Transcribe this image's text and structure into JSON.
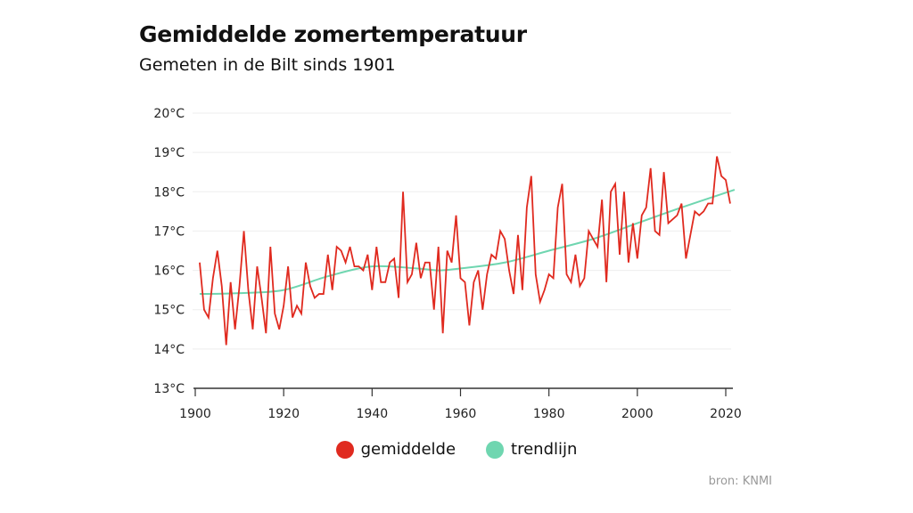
{
  "chart_data": {
    "type": "line",
    "title": "Gemiddelde zomertemperatuur",
    "subtitle": "Gemeten in de Bilt sinds 1901",
    "source": "bron: KNMI",
    "xlim": [
      1900,
      2022
    ],
    "ylim": [
      13,
      20
    ],
    "x_ticks": [
      "1900",
      "1920",
      "1940",
      "1960",
      "1980",
      "2000",
      "2020"
    ],
    "y_ticks": [
      "13°C",
      "14°C",
      "15°C",
      "16°C",
      "17°C",
      "18°C",
      "19°C",
      "20°C"
    ],
    "grid": "horizontal",
    "legend_placement": "bottom",
    "colors": {
      "gemiddelde": "#e02a1f",
      "trendlijn": "#6fd6b0"
    },
    "series": [
      {
        "name": "gemiddelde",
        "x_start": 1901,
        "values": [
          16.2,
          15.0,
          14.8,
          15.8,
          16.5,
          15.6,
          14.1,
          15.7,
          14.5,
          15.6,
          17.0,
          15.5,
          14.5,
          16.1,
          15.3,
          14.4,
          16.6,
          14.9,
          14.5,
          15.1,
          16.1,
          14.8,
          15.1,
          14.9,
          16.2,
          15.6,
          15.3,
          15.4,
          15.4,
          16.4,
          15.5,
          16.6,
          16.5,
          16.2,
          16.6,
          16.1,
          16.1,
          16.0,
          16.4,
          15.5,
          16.6,
          15.7,
          15.7,
          16.2,
          16.3,
          15.3,
          18.0,
          15.7,
          15.9,
          16.7,
          15.8,
          16.2,
          16.2,
          15.0,
          16.6,
          14.4,
          16.5,
          16.2,
          17.4,
          15.8,
          15.7,
          14.6,
          15.7,
          16.0,
          15.0,
          15.9,
          16.4,
          16.3,
          17.0,
          16.8,
          16.0,
          15.4,
          16.9,
          15.5,
          17.6,
          18.4,
          15.9,
          15.2,
          15.5,
          15.9,
          15.8,
          17.6,
          18.2,
          15.9,
          15.7,
          16.4,
          15.6,
          15.8,
          17.0,
          16.8,
          16.6,
          17.8,
          15.7,
          18.0,
          18.2,
          16.4,
          18.0,
          16.2,
          17.2,
          16.3,
          17.4,
          17.6,
          18.6,
          17.0,
          16.9,
          18.5,
          17.2,
          17.3,
          17.4,
          17.7,
          16.3,
          16.9,
          17.5,
          17.4,
          17.5,
          17.7,
          17.7,
          18.9,
          18.4,
          18.3,
          17.7
        ]
      },
      {
        "name": "trendlijn",
        "x": [
          1901,
          1910,
          1920,
          1930,
          1940,
          1950,
          1955,
          1960,
          1970,
          1980,
          1990,
          2000,
          2010,
          2022
        ],
        "values": [
          15.4,
          15.42,
          15.5,
          15.85,
          16.1,
          16.05,
          16.0,
          16.05,
          16.2,
          16.5,
          16.8,
          17.2,
          17.6,
          18.05
        ]
      }
    ]
  }
}
